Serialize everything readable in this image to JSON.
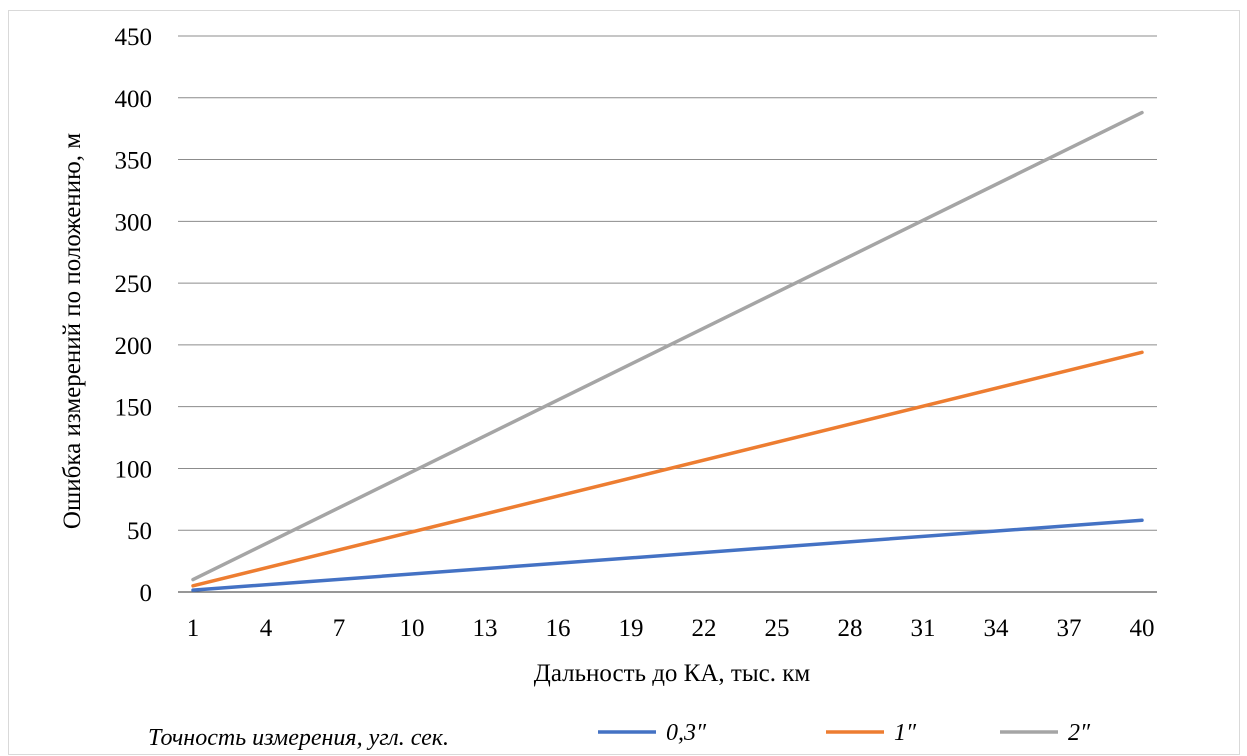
{
  "chart_data": {
    "type": "line",
    "xlabel": "Дальность до КА, тыс. км",
    "ylabel": "Ошибка измерений по положению, м",
    "x_ticks": [
      "1",
      "4",
      "7",
      "10",
      "13",
      "16",
      "19",
      "22",
      "25",
      "28",
      "31",
      "34",
      "37",
      "40"
    ],
    "x": [
      1,
      40
    ],
    "ylim": [
      0,
      450
    ],
    "y_ticks": [
      0,
      50,
      100,
      150,
      200,
      250,
      300,
      350,
      400,
      450
    ],
    "grid": true,
    "legend_title": "Точность измерения, угл. сек.",
    "legend_position": "bottom",
    "series": [
      {
        "name": "0,3″",
        "color": "#4472c4",
        "values": [
          1.5,
          58
        ]
      },
      {
        "name": "1″",
        "color": "#ed7d31",
        "values": [
          5,
          194
        ]
      },
      {
        "name": "2″",
        "color": "#a5a5a5",
        "values": [
          10,
          388
        ]
      }
    ]
  }
}
